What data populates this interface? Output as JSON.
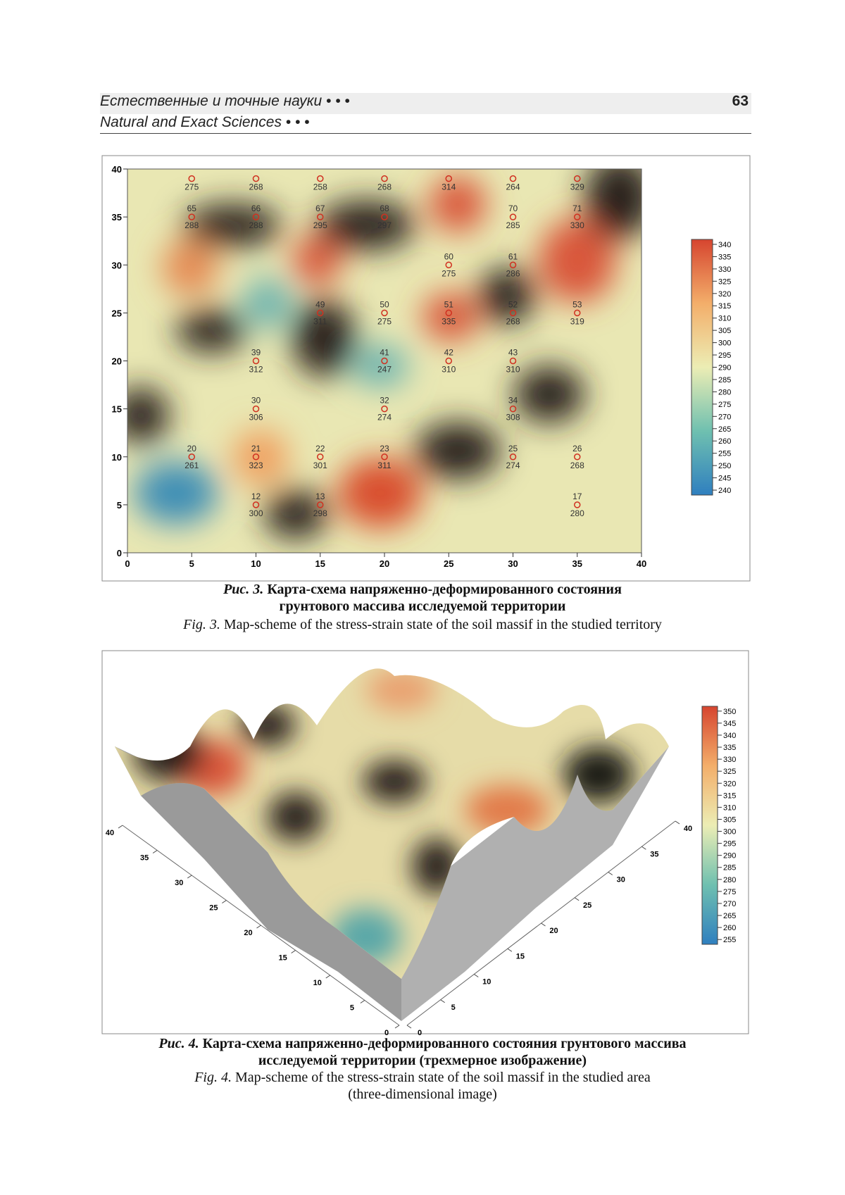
{
  "header": {
    "title_ru": "Естественные и точные науки • • •",
    "title_en": "Natural and Exact Sciences • • •",
    "page": "63"
  },
  "figure3": {
    "xlim": [
      0,
      40
    ],
    "ylim": [
      0,
      40
    ],
    "xticks": [
      0,
      5,
      10,
      15,
      20,
      25,
      30,
      35,
      40
    ],
    "yticks": [
      0,
      5,
      10,
      15,
      20,
      25,
      30,
      35,
      40
    ],
    "colorbar": {
      "lim": [
        238,
        342
      ],
      "ticks": [
        240,
        245,
        250,
        255,
        260,
        265,
        270,
        275,
        280,
        285,
        290,
        295,
        300,
        305,
        310,
        315,
        320,
        325,
        330,
        335,
        340
      ]
    },
    "points": [
      {
        "x": 5,
        "y": 39,
        "value": 275
      },
      {
        "x": 10,
        "y": 39,
        "value": 268
      },
      {
        "x": 15,
        "y": 39,
        "value": 258
      },
      {
        "x": 20,
        "y": 39,
        "value": 268
      },
      {
        "x": 25,
        "y": 39,
        "value": 314
      },
      {
        "x": 30,
        "y": 39,
        "value": 264
      },
      {
        "x": 35,
        "y": 39,
        "value": 329
      },
      {
        "x": 5,
        "y": 35,
        "id": "65",
        "value": 288
      },
      {
        "x": 10,
        "y": 35,
        "id": "66",
        "value": 288
      },
      {
        "x": 15,
        "y": 35,
        "id": "67",
        "value": 295
      },
      {
        "x": 20,
        "y": 35,
        "id": "68",
        "value": 297
      },
      {
        "x": 30,
        "y": 35,
        "id": "70",
        "value": 285
      },
      {
        "x": 35,
        "y": 35,
        "id": "71",
        "value": 330
      },
      {
        "x": 25,
        "y": 30,
        "id": "60",
        "value": 275
      },
      {
        "x": 30,
        "y": 30,
        "id": "61",
        "value": 286
      },
      {
        "x": 15,
        "y": 25,
        "id": "49",
        "value": 311
      },
      {
        "x": 20,
        "y": 25,
        "id": "50",
        "value": 275
      },
      {
        "x": 25,
        "y": 25,
        "id": "51",
        "value": 335
      },
      {
        "x": 30,
        "y": 25,
        "id": "52",
        "value": 268
      },
      {
        "x": 35,
        "y": 25,
        "id": "53",
        "value": 319
      },
      {
        "x": 10,
        "y": 20,
        "id": "39",
        "value": 312
      },
      {
        "x": 20,
        "y": 20,
        "id": "41",
        "value": 247
      },
      {
        "x": 25,
        "y": 20,
        "id": "42",
        "value": 310
      },
      {
        "x": 30,
        "y": 20,
        "id": "43",
        "value": 310
      },
      {
        "x": 10,
        "y": 15,
        "id": "30",
        "value": 306
      },
      {
        "x": 20,
        "y": 15,
        "id": "32",
        "value": 274
      },
      {
        "x": 30,
        "y": 15,
        "id": "34",
        "value": 308
      },
      {
        "x": 5,
        "y": 10,
        "id": "20",
        "value": 261
      },
      {
        "x": 10,
        "y": 10,
        "id": "21",
        "value": 323
      },
      {
        "x": 15,
        "y": 10,
        "id": "22",
        "value": 301
      },
      {
        "x": 20,
        "y": 10,
        "id": "23",
        "value": 311
      },
      {
        "x": 30,
        "y": 10,
        "id": "25",
        "value": 274
      },
      {
        "x": 35,
        "y": 10,
        "id": "26",
        "value": 268
      },
      {
        "x": 10,
        "y": 5,
        "id": "12",
        "value": 300
      },
      {
        "x": 15,
        "y": 5,
        "id": "13",
        "value": 298
      },
      {
        "x": 35,
        "y": 5,
        "id": "17",
        "value": 280
      }
    ],
    "caption_ru": {
      "label": "Рис. 3.",
      "lines": [
        "Карта-схема напряженно-деформированного состояния",
        "грунтового массива исследуемой территории"
      ]
    },
    "caption_en": {
      "label": "Fig. 3.",
      "text": "Map-scheme of the stress-strain state of the soil massif in the studied territory"
    }
  },
  "figure4": {
    "axis_lim": [
      0,
      40
    ],
    "left_ticks": [
      0,
      5,
      10,
      15,
      20,
      25,
      30,
      35,
      40
    ],
    "right_ticks": [
      0,
      5,
      10,
      15,
      20,
      25,
      30,
      35,
      40
    ],
    "colorbar": {
      "lim": [
        253,
        352
      ],
      "ticks": [
        255,
        260,
        265,
        270,
        275,
        280,
        285,
        290,
        295,
        300,
        305,
        310,
        315,
        320,
        325,
        330,
        335,
        340,
        345,
        350
      ]
    },
    "caption_ru": {
      "label": "Рис. 4.",
      "lines": [
        "Карта-схема напряженно-деформированного состояния грунтового массива",
        "исследуемой территории (трехмерное изображение)"
      ]
    },
    "caption_en": {
      "label": "Fig. 4.",
      "lines": [
        "Map-scheme of the stress-strain state of the soil massif in the studied area",
        "(three-dimensional image)"
      ]
    }
  }
}
